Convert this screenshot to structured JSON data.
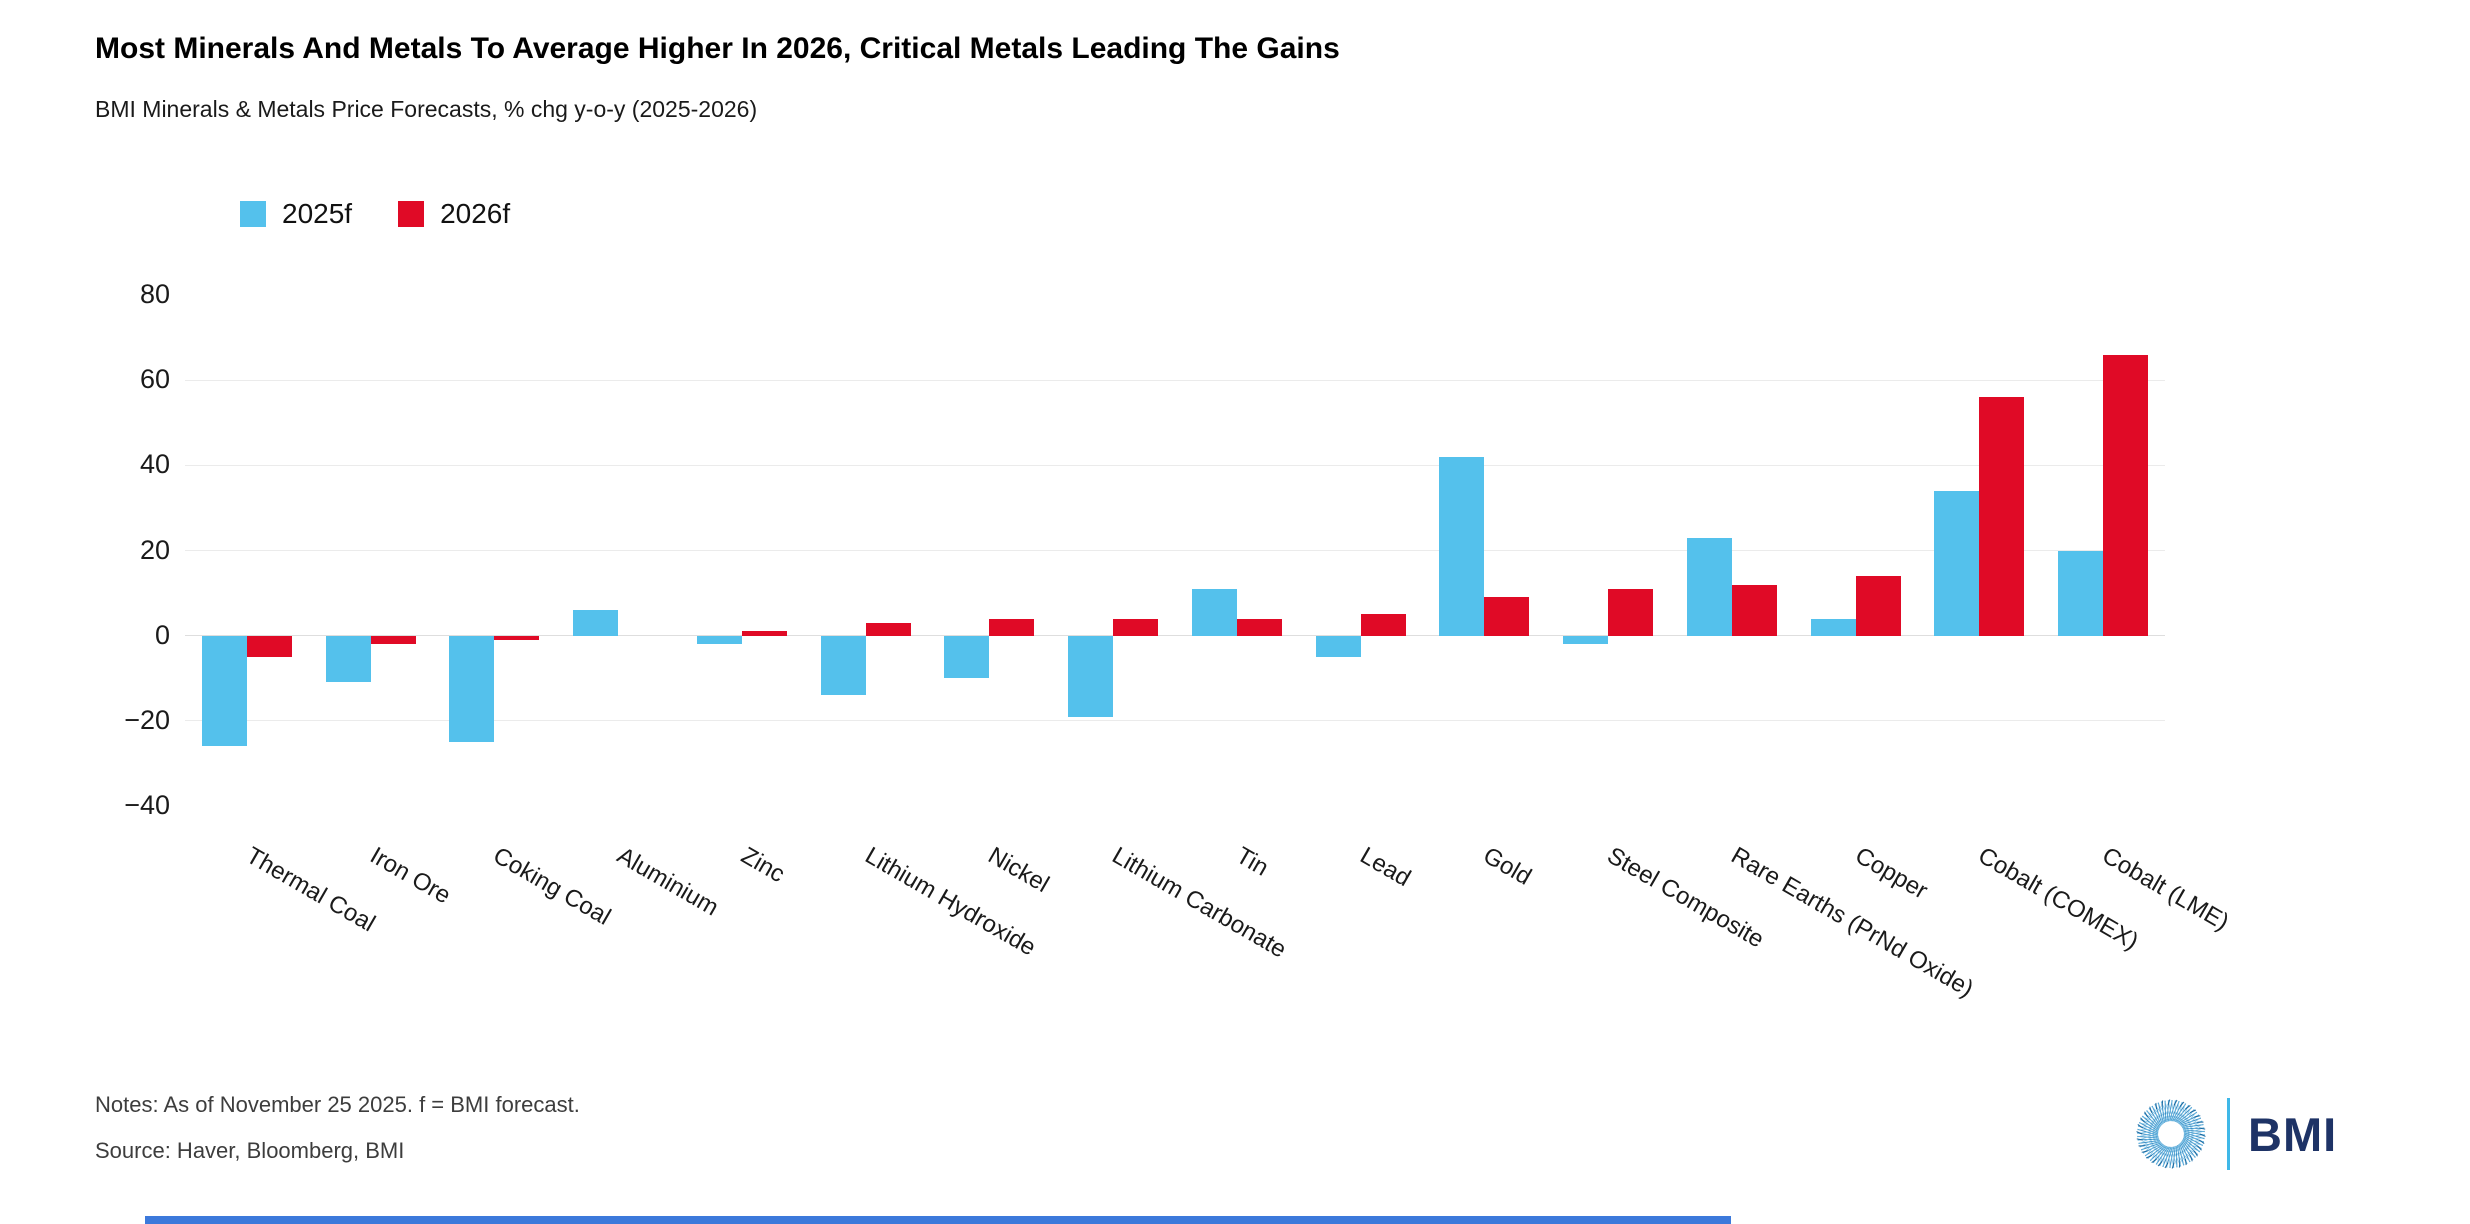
{
  "header": {
    "title": "Most Minerals And Metals To Average Higher In 2026, Critical Metals Leading The Gains",
    "subtitle": "BMI Minerals & Metals Price Forecasts, % chg y-o-y (2025-2026)"
  },
  "chart_data": {
    "type": "bar",
    "title": "Most Minerals And Metals To Average Higher In 2026, Critical Metals Leading The Gains",
    "subtitle": "BMI Minerals & Metals Price Forecasts, % chg y-o-y (2025-2026)",
    "categories": [
      "Thermal Coal",
      "Iron Ore",
      "Coking Coal",
      "Aluminium",
      "Zinc",
      "Lithium Hydroxide",
      "Nickel",
      "Lithium Carbonate",
      "Tin",
      "Lead",
      "Gold",
      "Steel Composite",
      "Rare Earths (PrNd Oxide)",
      "Copper",
      "Cobalt (COMEX)",
      "Cobalt (LME)"
    ],
    "series": [
      {
        "name": "2025f",
        "color": "#54C1EC",
        "values": [
          -26,
          -11,
          -25,
          6,
          -2,
          -14,
          -10,
          -19,
          11,
          -5,
          42,
          -2,
          23,
          4,
          34,
          20
        ]
      },
      {
        "name": "2026f",
        "color": "#E00A26",
        "values": [
          -5,
          -2,
          -1,
          0,
          1,
          3,
          4,
          4,
          4,
          5,
          9,
          11,
          12,
          14,
          56,
          66
        ]
      }
    ],
    "ylim": [
      -40,
      80
    ],
    "yticks": [
      80,
      60,
      40,
      20,
      0,
      -20,
      -40
    ],
    "gridline_values": [
      60,
      40,
      20,
      0,
      -20
    ],
    "grid": "horizontal",
    "legend_position": "top-left",
    "xlabel": "",
    "ylabel": ""
  },
  "legend": {
    "items": [
      {
        "label": "2025f",
        "color": "#54C1EC"
      },
      {
        "label": "2026f",
        "color": "#E00A26"
      }
    ]
  },
  "footer": {
    "notes": "Notes: As of November 25 2025. f = BMI forecast.",
    "source": "Source: Haver, Bloomberg, BMI",
    "brand": "BMI"
  },
  "colors": {
    "series_2025f": "#54C1EC",
    "series_2026f": "#E00A26",
    "gridline": "#EBEBEB",
    "zero_line": "#DEDEDE",
    "brand_navy": "#1E3366",
    "brand_light_blue": "#3FB8E8",
    "bottom_strip": "#3C79DB"
  }
}
